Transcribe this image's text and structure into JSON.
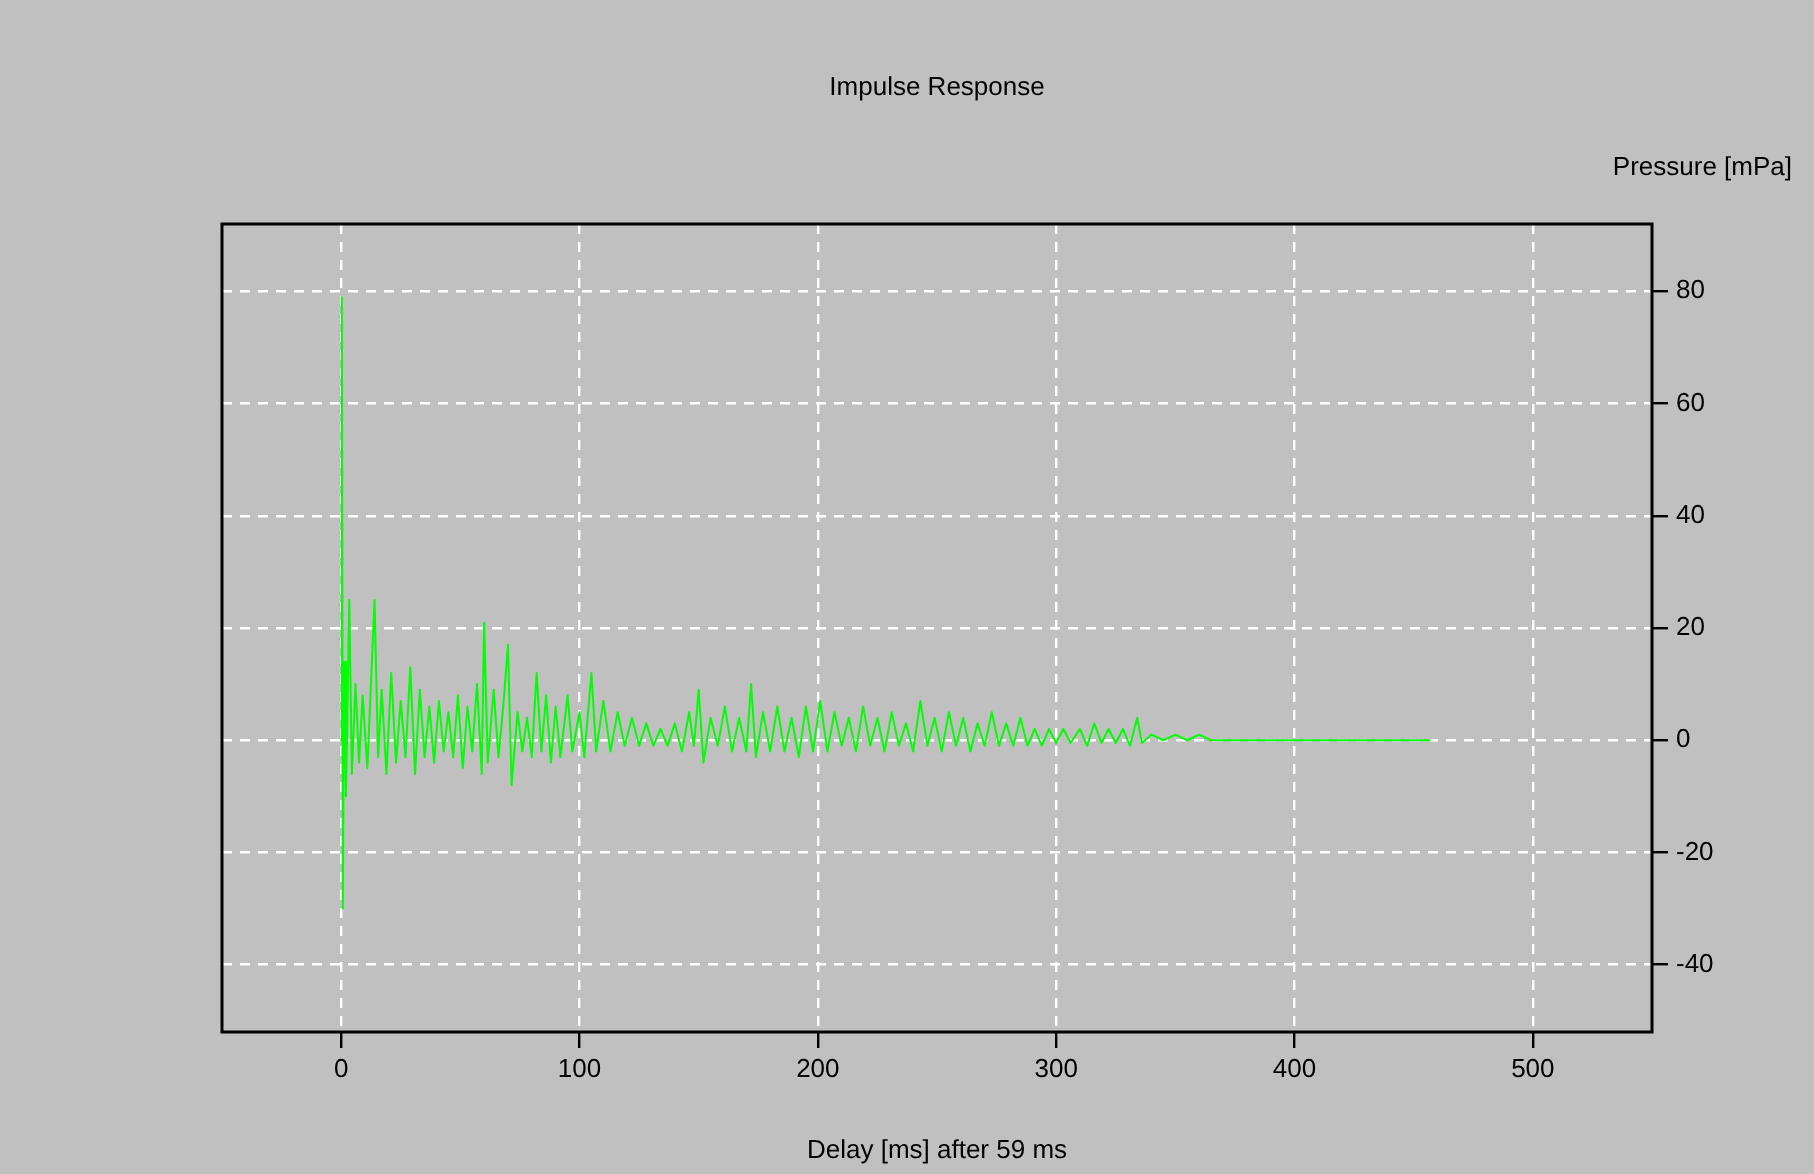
{
  "chart_data": {
    "type": "line",
    "title": "Impulse Response",
    "xlabel": "Delay [ms] after 59 ms",
    "ylabel": "Pressure [mPa]",
    "xlim": [
      -50,
      550
    ],
    "xticks": [
      0,
      100,
      200,
      300,
      400,
      500
    ],
    "ylim": [
      -52,
      92
    ],
    "yticks": [
      -40,
      -20,
      0,
      20,
      40,
      60,
      80
    ],
    "grid": true,
    "marker": "none",
    "line_style": "solid",
    "series": [
      {
        "color": "#00ff00",
        "x": [
          0,
          0.3,
          0.7,
          1.2,
          2,
          3.4,
          4.5,
          6,
          7.5,
          9,
          11,
          14,
          15.5,
          17,
          19,
          21,
          23,
          25,
          27,
          29,
          31,
          33,
          35,
          37,
          39,
          41,
          43,
          45,
          47,
          49,
          51,
          53,
          55,
          57,
          59,
          60,
          61.5,
          64,
          66,
          68,
          70,
          71.5,
          74,
          76,
          78,
          80,
          82,
          84,
          86,
          88,
          90,
          92,
          95,
          97,
          100,
          102,
          105,
          107,
          110,
          113,
          116,
          119,
          122,
          125,
          128,
          131,
          134,
          137,
          140,
          143,
          146,
          148,
          150,
          152,
          155,
          158,
          161,
          164,
          167,
          170,
          172,
          174,
          177,
          180,
          183,
          186,
          189,
          192,
          195,
          198,
          201,
          204,
          207,
          210,
          213,
          216,
          219,
          222,
          225,
          228,
          231,
          234,
          237,
          240,
          243,
          246,
          249,
          252,
          255,
          258,
          261,
          264,
          267,
          270,
          273,
          276,
          279,
          282,
          285,
          288,
          291,
          294,
          297,
          300,
          303,
          306,
          310,
          313,
          316,
          319,
          322,
          325,
          328,
          331,
          334,
          336,
          340,
          345,
          350,
          355,
          360,
          365,
          370,
          457
        ],
        "values": [
          0,
          79,
          -30,
          14,
          -10,
          25,
          -6,
          10,
          -4,
          8,
          -5,
          25,
          -3,
          9,
          -6,
          12,
          -4,
          7,
          -3,
          13,
          -6,
          9,
          -3,
          6,
          -4,
          7,
          -2,
          5,
          -3,
          8,
          -5,
          6,
          -2,
          10,
          -6,
          21,
          -4,
          9,
          -3,
          6,
          17,
          -8,
          5,
          -2,
          4,
          -3,
          12,
          -2,
          8,
          -4,
          6,
          -3,
          8,
          -2,
          5,
          -3,
          12,
          -2,
          7,
          -2,
          5,
          -1,
          4,
          -1,
          3,
          -1,
          2,
          -1,
          3,
          -2,
          5,
          -1,
          9,
          -4,
          4,
          -1,
          6,
          -2,
          4,
          -2,
          10,
          -3,
          5,
          -2,
          6,
          -2,
          4,
          -3,
          6,
          -2,
          7,
          -2,
          5,
          -1,
          4,
          -2,
          6,
          -1,
          4,
          -2,
          5,
          -1,
          3,
          -2,
          7,
          -1,
          4,
          -2,
          5,
          -1,
          4,
          -2,
          3,
          -1,
          5,
          -1,
          3,
          -1,
          4,
          -1,
          2,
          -1,
          2,
          -0.5,
          2,
          -0.5,
          2,
          -1,
          3,
          -0.5,
          2,
          -0.5,
          2,
          -1,
          4,
          -0.5,
          1,
          0,
          1,
          0,
          1,
          0,
          0,
          0
        ]
      }
    ]
  }
}
